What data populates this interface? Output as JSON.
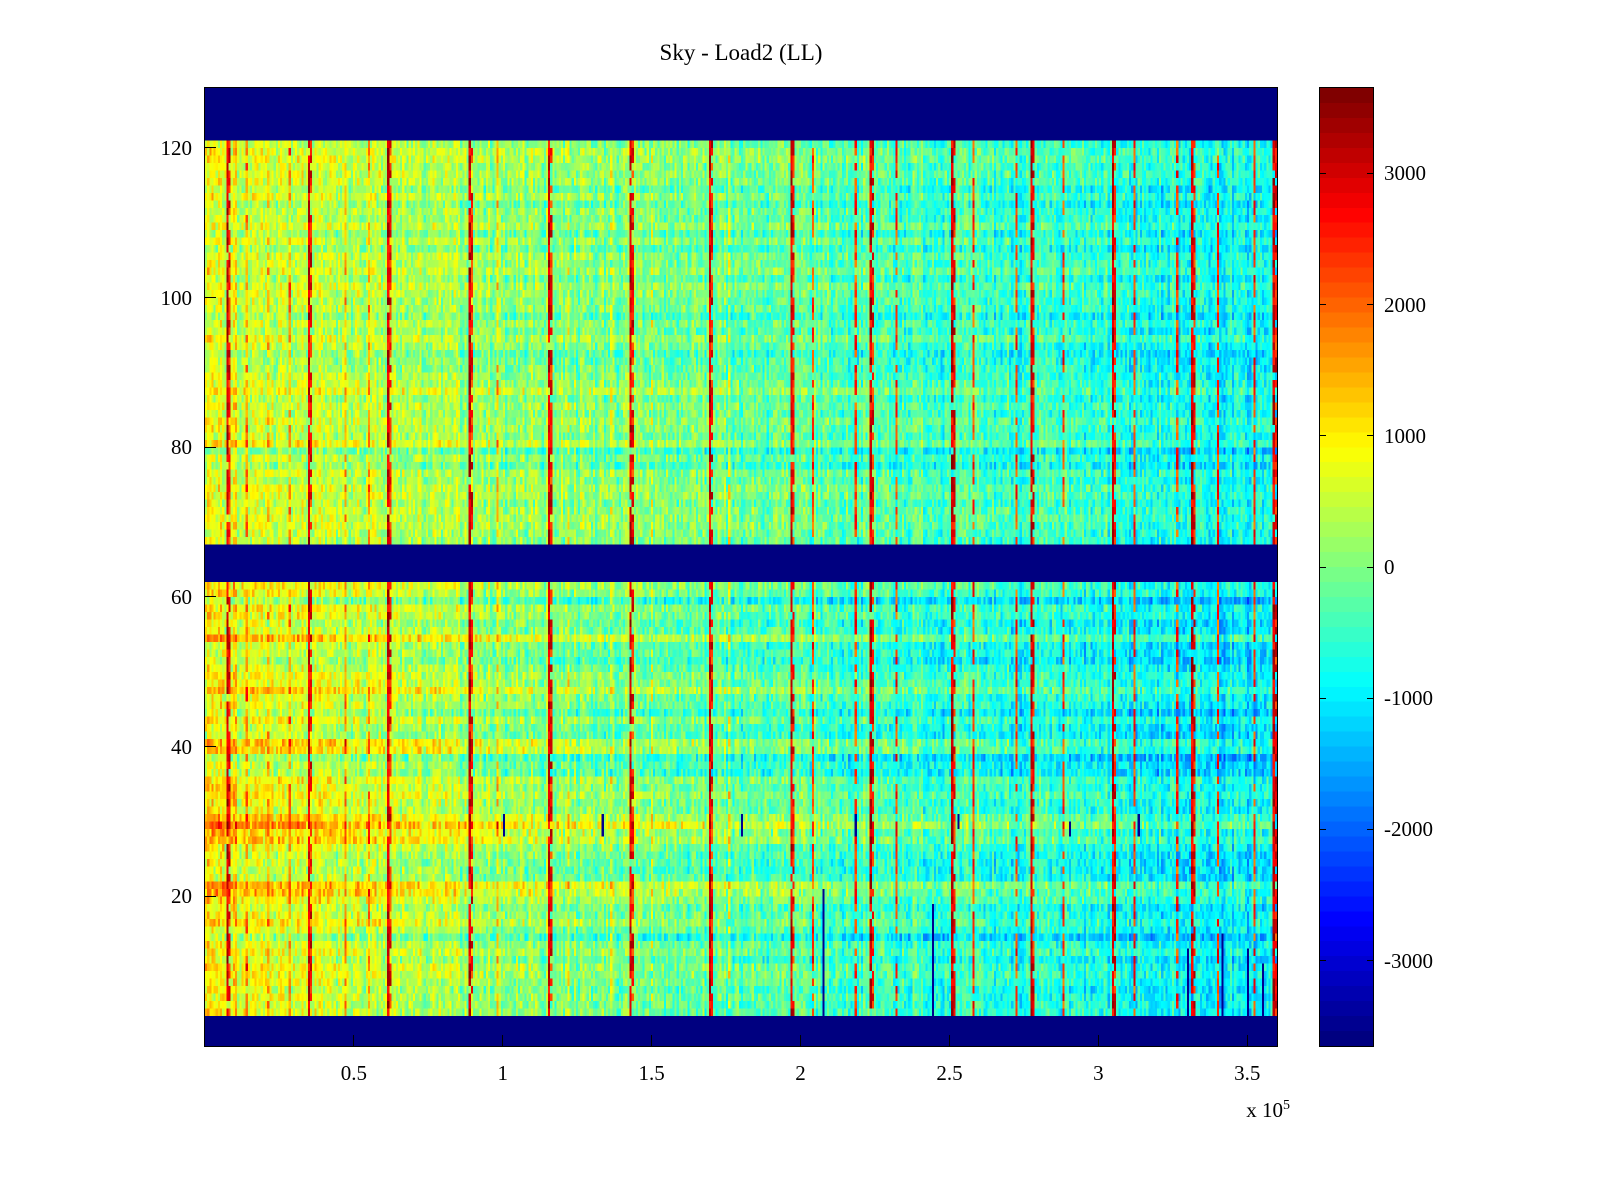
{
  "chart_data": {
    "type": "heatmap",
    "title": "Sky - Load2 (LL)",
    "xlim": [
      0,
      360000
    ],
    "ylim": [
      0,
      128
    ],
    "x_tick_values": [
      50000,
      100000,
      150000,
      200000,
      250000,
      300000,
      350000
    ],
    "x_tick_labels": [
      "0.5",
      "1",
      "1.5",
      "2",
      "2.5",
      "3",
      "3.5"
    ],
    "x_exponent_base": "x 10",
    "x_exponent_power": "5",
    "y_tick_values": [
      20,
      40,
      60,
      80,
      100,
      120
    ],
    "y_tick_labels": [
      "20",
      "40",
      "60",
      "80",
      "100",
      "120"
    ],
    "colormap": "jet",
    "color_range": [
      -3650,
      3650
    ],
    "colorbar_tick_values": [
      3000,
      2000,
      1000,
      0,
      -1000,
      -2000,
      -3000
    ],
    "colorbar_tick_labels": [
      "3000",
      "2000",
      "1000",
      "0",
      "-1000",
      "-2000",
      "-3000"
    ],
    "background_gradient": {
      "left_value": 500,
      "right_value": -950
    },
    "nan_bands_y": [
      [
        0,
        3.2
      ],
      [
        61.2,
        66.8
      ],
      [
        121,
        128
      ]
    ],
    "red_stripes_x": [
      7500,
      34500,
      61500,
      88500,
      115500,
      142500,
      169500,
      196500,
      223500,
      250500,
      277500,
      304500,
      331500,
      358500
    ],
    "minor_stripes_x": [
      14000,
      21000,
      28000,
      47000,
      55000,
      98000,
      122000,
      136000,
      150000,
      176000,
      204000,
      218000,
      232000,
      258000,
      272000,
      288000,
      312000,
      326000,
      340000,
      352000
    ],
    "row_streaks": [
      {
        "y": 10,
        "amp": 350
      },
      {
        "y": 14,
        "amp": -350
      },
      {
        "y": 16,
        "amp": 450
      },
      {
        "y": 20,
        "amp": 750
      },
      {
        "y": 21,
        "amp": 550
      },
      {
        "y": 27,
        "amp": 450
      },
      {
        "y": 28,
        "amp": 700
      },
      {
        "y": 29,
        "amp": 800
      },
      {
        "y": 30,
        "amp": 500
      },
      {
        "y": 36,
        "amp": -500
      },
      {
        "y": 38,
        "amp": -350
      },
      {
        "y": 39,
        "amp": 550
      },
      {
        "y": 40,
        "amp": 600
      },
      {
        "y": 44,
        "amp": -300
      },
      {
        "y": 47,
        "amp": 300
      },
      {
        "y": 51,
        "amp": -300
      },
      {
        "y": 54,
        "amp": 380
      },
      {
        "y": 58,
        "amp": 300
      },
      {
        "y": 59,
        "amp": -280
      },
      {
        "y": 79,
        "amp": -300
      },
      {
        "y": 80,
        "amp": 350
      },
      {
        "y": 87,
        "amp": 400
      },
      {
        "y": 93,
        "amp": 300
      },
      {
        "y": 95,
        "amp": -250
      },
      {
        "y": 106,
        "amp": -250
      },
      {
        "y": 113,
        "amp": 300
      },
      {
        "y": 118,
        "amp": 280
      }
    ],
    "dark_segments": [
      {
        "x": 207000,
        "y0": 3,
        "y1": 20
      },
      {
        "x": 244000,
        "y0": 3,
        "y1": 18
      },
      {
        "x": 330000,
        "y0": 3,
        "y1": 12
      },
      {
        "x": 341000,
        "y0": 3,
        "y1": 14
      },
      {
        "x": 350000,
        "y0": 4,
        "y1": 12
      },
      {
        "x": 355000,
        "y0": 3,
        "y1": 10
      },
      {
        "x": 100000,
        "y0": 28,
        "y1": 30
      },
      {
        "x": 133000,
        "y0": 28,
        "y1": 30
      },
      {
        "x": 180000,
        "y0": 28,
        "y1": 30
      },
      {
        "x": 218000,
        "y0": 28,
        "y1": 30
      },
      {
        "x": 253000,
        "y0": 29,
        "y1": 30
      },
      {
        "x": 290000,
        "y0": 28,
        "y1": 29
      },
      {
        "x": 313000,
        "y0": 28,
        "y1": 30
      }
    ],
    "noise": {
      "cell": 520,
      "row": 260,
      "col": 320,
      "seed": 7
    }
  }
}
